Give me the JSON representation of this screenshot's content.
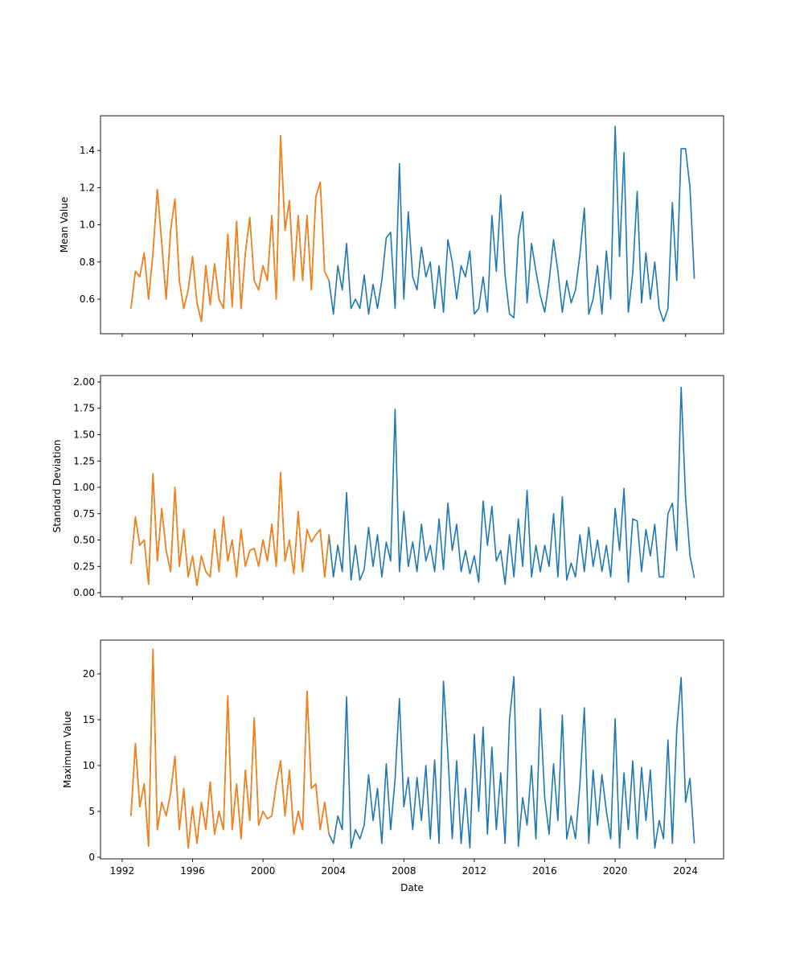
{
  "chart_data": [
    {
      "type": "line",
      "ylabel": "Mean Value",
      "ylim": [
        0.414,
        1.587
      ],
      "yticks": [
        0.6,
        0.8,
        1.0,
        1.2,
        1.4
      ],
      "ytick_labels": [
        "0.6",
        "0.8",
        "1.0",
        "1.2",
        "1.4"
      ],
      "series": [
        {
          "name": "blue",
          "color": "#1f77b4",
          "values": [
            0.55,
            0.75,
            0.72,
            0.85,
            0.6,
            0.85,
            1.19,
            0.9,
            0.6,
            0.97,
            1.14,
            0.7,
            0.55,
            0.65,
            0.83,
            0.58,
            0.48,
            0.78,
            0.57,
            0.79,
            0.6,
            0.55,
            0.95,
            0.56,
            1.02,
            0.55,
            0.85,
            1.04,
            0.7,
            0.65,
            0.78,
            0.7,
            1.05,
            0.6,
            1.48,
            0.97,
            1.13,
            0.7,
            1.05,
            0.7,
            1.05,
            0.65,
            1.15,
            1.23,
            0.75,
            0.7,
            0.52,
            0.78,
            0.65,
            0.9,
            0.55,
            0.6,
            0.55,
            0.73,
            0.52,
            0.68,
            0.55,
            0.7,
            0.93,
            0.96,
            0.55,
            1.33,
            0.6,
            1.07,
            0.72,
            0.65,
            0.88,
            0.72,
            0.8,
            0.55,
            0.78,
            0.53,
            0.92,
            0.8,
            0.6,
            0.78,
            0.72,
            0.86,
            0.52,
            0.55,
            0.72,
            0.53,
            1.05,
            0.75,
            1.16,
            0.73,
            0.52,
            0.5,
            0.93,
            1.07,
            0.58,
            0.9,
            0.75,
            0.62,
            0.53,
            0.7,
            0.92,
            0.75,
            0.53,
            0.7,
            0.58,
            0.65,
            0.84,
            1.09,
            0.52,
            0.6,
            0.78,
            0.52,
            0.86,
            0.6,
            1.53,
            0.83,
            1.39,
            0.53,
            0.74,
            1.18,
            0.58,
            0.85,
            0.6,
            0.8,
            0.55,
            0.48,
            0.55,
            1.12,
            0.7,
            1.41,
            1.41,
            1.2,
            0.71
          ]
        },
        {
          "name": "orange",
          "color": "#ff7f0e",
          "values": [
            0.55,
            0.75,
            0.72,
            0.85,
            0.6,
            0.85,
            1.19,
            0.9,
            0.6,
            0.97,
            1.14,
            0.7,
            0.55,
            0.65,
            0.83,
            0.58,
            0.48,
            0.78,
            0.57,
            0.79,
            0.6,
            0.55,
            0.95,
            0.56,
            1.02,
            0.55,
            0.85,
            1.04,
            0.7,
            0.65,
            0.78,
            0.7,
            1.05,
            0.6,
            1.48,
            0.97,
            1.13,
            0.7,
            1.05,
            0.7,
            1.05,
            0.65,
            1.15,
            1.23,
            0.75,
            0.7
          ]
        }
      ]
    },
    {
      "type": "line",
      "ylabel": "Standard Deviation",
      "ylim": [
        -0.038,
        2.061
      ],
      "yticks": [
        0,
        0.25,
        0.5,
        0.75,
        1.0,
        1.25,
        1.5,
        1.75,
        2.0
      ],
      "ytick_labels": [
        "0.00",
        "0.25",
        "0.50",
        "0.75",
        "1.00",
        "1.25",
        "1.50",
        "1.75",
        "2.00"
      ],
      "series": [
        {
          "name": "blue",
          "color": "#1f77b4",
          "values": [
            0.27,
            0.72,
            0.45,
            0.5,
            0.08,
            1.13,
            0.3,
            0.8,
            0.4,
            0.2,
            1.0,
            0.25,
            0.6,
            0.15,
            0.35,
            0.07,
            0.35,
            0.2,
            0.15,
            0.6,
            0.2,
            0.72,
            0.3,
            0.5,
            0.15,
            0.6,
            0.25,
            0.4,
            0.42,
            0.25,
            0.5,
            0.3,
            0.65,
            0.25,
            1.14,
            0.3,
            0.5,
            0.18,
            0.77,
            0.2,
            0.6,
            0.48,
            0.55,
            0.6,
            0.15,
            0.55,
            0.15,
            0.45,
            0.2,
            0.95,
            0.12,
            0.45,
            0.12,
            0.22,
            0.62,
            0.25,
            0.55,
            0.15,
            0.48,
            0.3,
            1.74,
            0.2,
            0.77,
            0.25,
            0.48,
            0.2,
            0.65,
            0.3,
            0.45,
            0.2,
            0.7,
            0.22,
            0.85,
            0.4,
            0.65,
            0.2,
            0.4,
            0.18,
            0.35,
            0.1,
            0.87,
            0.45,
            0.82,
            0.3,
            0.4,
            0.08,
            0.55,
            0.15,
            0.7,
            0.25,
            0.97,
            0.15,
            0.45,
            0.2,
            0.45,
            0.25,
            0.75,
            0.15,
            0.91,
            0.12,
            0.28,
            0.15,
            0.55,
            0.2,
            0.62,
            0.25,
            0.5,
            0.2,
            0.45,
            0.15,
            0.8,
            0.4,
            0.99,
            0.1,
            0.7,
            0.68,
            0.2,
            0.6,
            0.35,
            0.65,
            0.15,
            0.15,
            0.75,
            0.85,
            0.4,
            1.95,
            0.9,
            0.35,
            0.14
          ]
        },
        {
          "name": "orange",
          "color": "#ff7f0e",
          "values": [
            0.27,
            0.72,
            0.45,
            0.5,
            0.08,
            1.13,
            0.3,
            0.8,
            0.4,
            0.2,
            1.0,
            0.25,
            0.6,
            0.15,
            0.35,
            0.07,
            0.35,
            0.2,
            0.15,
            0.6,
            0.2,
            0.72,
            0.3,
            0.5,
            0.15,
            0.6,
            0.25,
            0.4,
            0.42,
            0.25,
            0.5,
            0.3,
            0.65,
            0.25,
            1.14,
            0.3,
            0.5,
            0.18,
            0.77,
            0.2,
            0.6,
            0.48,
            0.55,
            0.6,
            0.15,
            0.55
          ]
        }
      ]
    },
    {
      "type": "line",
      "xlabel": "Date",
      "ylabel": "Maximum Value",
      "ylim": [
        -0.18,
        23.68
      ],
      "yticks": [
        0,
        5,
        10,
        15,
        20
      ],
      "ytick_labels": [
        "0",
        "5",
        "10",
        "15",
        "20"
      ],
      "series": [
        {
          "name": "blue",
          "color": "#1f77b4",
          "values": [
            4.5,
            12.4,
            5.5,
            8.0,
            1.2,
            22.7,
            3.0,
            6.0,
            4.5,
            7.0,
            11.0,
            3.0,
            7.5,
            1.0,
            5.5,
            1.5,
            6.0,
            3.0,
            8.2,
            2.5,
            5.0,
            3.0,
            17.6,
            3.0,
            8.0,
            2.0,
            9.5,
            4.0,
            15.2,
            3.5,
            5.0,
            4.2,
            4.5,
            8.0,
            10.5,
            4.5,
            9.5,
            2.5,
            5.0,
            3.0,
            18.1,
            7.5,
            8.0,
            3.0,
            6.0,
            2.5,
            1.5,
            4.5,
            3.0,
            17.5,
            1.0,
            3.0,
            2.0,
            3.5,
            9.0,
            4.0,
            7.5,
            1.5,
            10.2,
            3.0,
            8.5,
            17.3,
            5.5,
            8.7,
            3.0,
            8.7,
            4.0,
            10.0,
            2.0,
            10.6,
            1.5,
            19.2,
            11.2,
            2.0,
            10.5,
            1.5,
            7.5,
            1.0,
            13.4,
            5.0,
            14.2,
            2.5,
            12.0,
            3.0,
            9.2,
            1.5,
            15.0,
            19.7,
            1.2,
            6.5,
            3.5,
            10.0,
            2.0,
            16.2,
            6.5,
            2.5,
            10.2,
            4.0,
            15.5,
            2.0,
            4.5,
            2.0,
            8.0,
            16.3,
            1.5,
            9.5,
            3.5,
            9.0,
            5.0,
            2.0,
            15.1,
            1.0,
            9.2,
            3.0,
            10.5,
            2.0,
            9.8,
            4.0,
            9.5,
            1.0,
            4.0,
            2.0,
            12.8,
            1.5,
            13.9,
            19.6,
            6.0,
            8.6,
            1.5
          ]
        },
        {
          "name": "orange",
          "color": "#ff7f0e",
          "values": [
            4.5,
            12.4,
            5.5,
            8.0,
            1.2,
            22.7,
            3.0,
            6.0,
            4.5,
            7.0,
            11.0,
            3.0,
            7.5,
            1.0,
            5.5,
            1.5,
            6.0,
            3.0,
            8.2,
            2.5,
            5.0,
            3.0,
            17.6,
            3.0,
            8.0,
            2.0,
            9.5,
            4.0,
            15.2,
            3.5,
            5.0,
            4.2,
            4.5,
            8.0,
            10.5,
            4.5,
            9.5,
            2.5,
            5.0,
            3.0,
            18.1,
            7.5,
            8.0,
            3.0,
            6.0,
            2.5
          ]
        }
      ]
    }
  ],
  "x_axis": {
    "start": 1992.5,
    "step": 0.25,
    "xlim": [
      1990.77,
      2026.16
    ],
    "ticks": [
      1992,
      1996,
      2000,
      2004,
      2008,
      2012,
      2016,
      2020,
      2024
    ],
    "tick_labels": [
      "1992",
      "1996",
      "2000",
      "2004",
      "2008",
      "2012",
      "2016",
      "2020",
      "2024"
    ],
    "label": "Date"
  }
}
